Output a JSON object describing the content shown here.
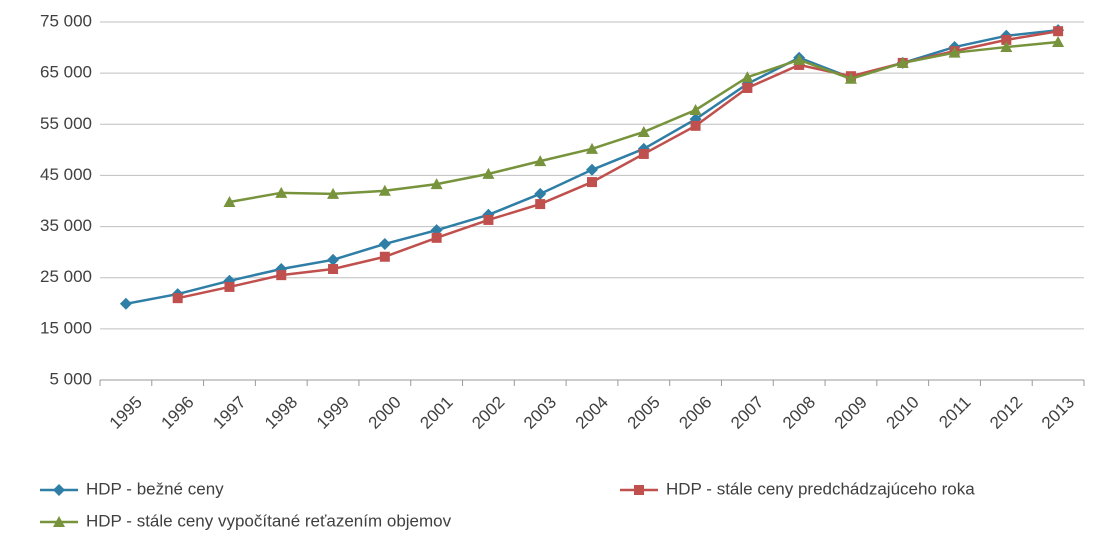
{
  "chart_data": {
    "type": "line",
    "categories": [
      "1995",
      "1996",
      "1997",
      "1998",
      "1999",
      "2000",
      "2001",
      "2002",
      "2003",
      "2004",
      "2005",
      "2006",
      "2007",
      "2008",
      "2009",
      "2010",
      "2011",
      "2012",
      "2013"
    ],
    "series": [
      {
        "name": "HDP - bežné ceny",
        "color": "#2f7ea6",
        "marker": "diamond",
        "values": [
          19900,
          21800,
          24400,
          26700,
          28500,
          31600,
          34300,
          37300,
          41400,
          46100,
          50200,
          56000,
          62900,
          68000,
          64100,
          67000,
          70100,
          72300,
          73400
        ]
      },
      {
        "name": "HDP - stále ceny predchádzajúceho roka",
        "color": "#c0504d",
        "marker": "square",
        "values": [
          null,
          21000,
          23200,
          25500,
          26700,
          29100,
          32800,
          36300,
          39400,
          43700,
          49200,
          54700,
          62100,
          66600,
          64400,
          67000,
          69300,
          71500,
          73200
        ]
      },
      {
        "name": "HDP - stále ceny vypočítané reťazením objemov",
        "color": "#77933c",
        "marker": "triangle",
        "values": [
          null,
          null,
          39800,
          41600,
          41400,
          42000,
          43300,
          45300,
          47800,
          50200,
          53500,
          57800,
          64200,
          67600,
          63900,
          67000,
          69000,
          70100,
          71100
        ]
      }
    ],
    "ylim": [
      5000,
      75000
    ],
    "yticks": [
      {
        "value": 5000,
        "label": "5 000"
      },
      {
        "value": 15000,
        "label": "15 000"
      },
      {
        "value": 25000,
        "label": "25 000"
      },
      {
        "value": 35000,
        "label": "35 000"
      },
      {
        "value": 45000,
        "label": "45 000"
      },
      {
        "value": 55000,
        "label": "55 000"
      },
      {
        "value": 65000,
        "label": "65 000"
      },
      {
        "value": 75000,
        "label": "75 000"
      }
    ],
    "grid": true,
    "legend": "bottom"
  }
}
